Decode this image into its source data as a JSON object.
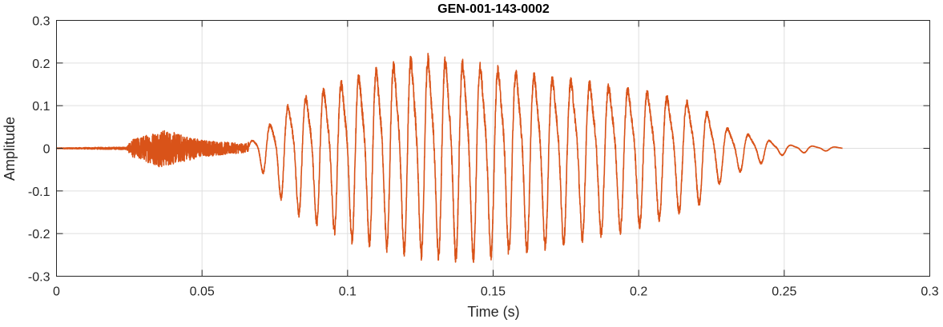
{
  "chart_data": {
    "type": "line",
    "title": "GEN-001-143-0002",
    "xlabel": "Time (s)",
    "ylabel": "Amplitude",
    "xlim": [
      0,
      0.3
    ],
    "ylim": [
      -0.3,
      0.3
    ],
    "xticks": [
      0,
      0.05,
      0.1,
      0.15,
      0.2,
      0.25,
      0.3
    ],
    "xtick_labels": [
      "0",
      "0.05",
      "0.1",
      "0.15",
      "0.2",
      "0.25",
      "0.3"
    ],
    "yticks": [
      -0.3,
      -0.2,
      -0.1,
      0,
      0.1,
      0.2,
      0.3
    ],
    "ytick_labels": [
      "-0.3",
      "-0.2",
      "-0.1",
      "0",
      "0.1",
      "0.2",
      "0.3"
    ],
    "grid": true,
    "series": [
      {
        "color": "#D95319",
        "signal": {
          "duration_s": 0.27,
          "envelope_breakpoints": [
            {
              "t": 0.0,
              "pos": 0.001,
              "neg": -0.001
            },
            {
              "t": 0.024,
              "pos": 0.003,
              "neg": -0.003
            },
            {
              "t": 0.026,
              "pos": 0.02,
              "neg": -0.02
            },
            {
              "t": 0.036,
              "pos": 0.045,
              "neg": -0.04
            },
            {
              "t": 0.05,
              "pos": 0.02,
              "neg": -0.02
            },
            {
              "t": 0.065,
              "pos": 0.01,
              "neg": -0.01
            },
            {
              "t": 0.07,
              "pos": 0.04,
              "neg": -0.05
            },
            {
              "t": 0.08,
              "pos": 0.13,
              "neg": -0.15
            },
            {
              "t": 0.1,
              "pos": 0.2,
              "neg": -0.22
            },
            {
              "t": 0.125,
              "pos": 0.27,
              "neg": -0.26
            },
            {
              "t": 0.14,
              "pos": 0.25,
              "neg": -0.27
            },
            {
              "t": 0.16,
              "pos": 0.22,
              "neg": -0.25
            },
            {
              "t": 0.2,
              "pos": 0.17,
              "neg": -0.19
            },
            {
              "t": 0.22,
              "pos": 0.13,
              "neg": -0.14
            },
            {
              "t": 0.23,
              "pos": 0.06,
              "neg": -0.07
            },
            {
              "t": 0.25,
              "pos": 0.01,
              "neg": -0.015
            },
            {
              "t": 0.27,
              "pos": 0.003,
              "neg": -0.003
            }
          ],
          "voiced_onset_s": 0.066,
          "pitch_hz_start": 160,
          "pitch_hz_peak": 170,
          "pitch_hz_end": 130
        }
      }
    ]
  }
}
